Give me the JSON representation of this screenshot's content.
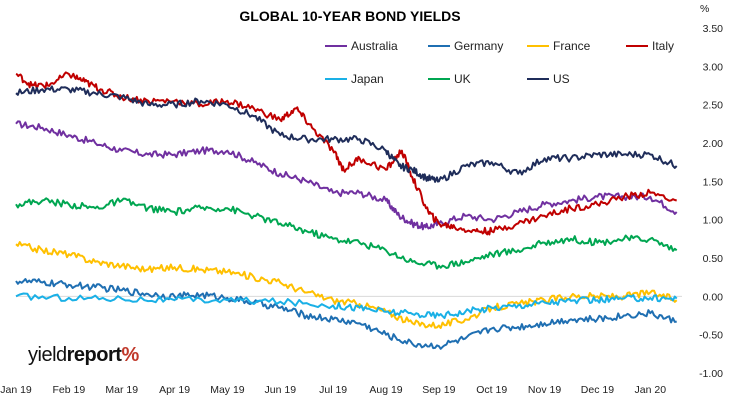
{
  "chart_data": {
    "type": "line",
    "title": "GLOBAL 10-YEAR BOND YIELDS",
    "ylabel": "%",
    "ylim": [
      -1.0,
      3.5
    ],
    "y_ticks": [
      3.5,
      3.0,
      2.5,
      2.0,
      1.5,
      1.0,
      0.5,
      0.0,
      -0.5,
      -1.0
    ],
    "y_tick_labels": [
      "3.50",
      "3.00",
      "2.50",
      "2.00",
      "1.50",
      "1.00",
      "0.50",
      "0.00",
      "-0.50",
      "-1.00"
    ],
    "x_tick_labels": [
      "Jan 19",
      "Feb 19",
      "Mar 19",
      "Apr 19",
      "May 19",
      "Jun 19",
      "Jul 19",
      "Aug 19",
      "Sep 19",
      "Oct 19",
      "Nov 19",
      "Dec 19",
      "Jan 20"
    ],
    "x_months": [
      0,
      1,
      2,
      3,
      4,
      5,
      6,
      7,
      8,
      9,
      10,
      11,
      12
    ],
    "x_range": [
      0,
      12.6
    ],
    "grid": false,
    "legend_position": "top-right",
    "series": [
      {
        "name": "Australia",
        "color": "#7030a0",
        "x": [
          0,
          0.5,
          1,
          1.5,
          2,
          2.5,
          3,
          3.5,
          4,
          4.5,
          5,
          5.5,
          6,
          6.5,
          7,
          7.25,
          7.5,
          7.75,
          8,
          8.5,
          9,
          9.5,
          10,
          10.5,
          11,
          11.5,
          12,
          12.5
        ],
        "values": [
          2.25,
          2.2,
          2.1,
          2.0,
          1.9,
          1.85,
          1.85,
          1.9,
          1.9,
          1.75,
          1.6,
          1.5,
          1.35,
          1.35,
          1.25,
          1.05,
          0.95,
          0.9,
          0.95,
          1.05,
          1.0,
          1.1,
          1.2,
          1.25,
          1.3,
          1.3,
          1.3,
          1.1
        ]
      },
      {
        "name": "Germany",
        "color": "#1f6fb2",
        "x": [
          0,
          0.5,
          1,
          1.5,
          2,
          2.5,
          3,
          3.5,
          4,
          4.5,
          5,
          5.5,
          6,
          6.5,
          7,
          7.5,
          8,
          8.5,
          9,
          9.5,
          10,
          10.5,
          11,
          11.5,
          12,
          12.5
        ],
        "values": [
          0.2,
          0.18,
          0.15,
          0.12,
          0.08,
          0.03,
          0.0,
          0.02,
          -0.02,
          -0.08,
          -0.15,
          -0.25,
          -0.3,
          -0.35,
          -0.5,
          -0.62,
          -0.65,
          -0.55,
          -0.42,
          -0.4,
          -0.35,
          -0.3,
          -0.3,
          -0.25,
          -0.22,
          -0.33
        ]
      },
      {
        "name": "France",
        "color": "#ffc000",
        "x": [
          0,
          0.5,
          1,
          1.5,
          2,
          2.5,
          3,
          3.5,
          4,
          4.5,
          5,
          5.5,
          6,
          6.5,
          7,
          7.5,
          8,
          8.5,
          9,
          9.5,
          10,
          10.5,
          11,
          11.5,
          12,
          12.5
        ],
        "values": [
          0.68,
          0.6,
          0.55,
          0.45,
          0.4,
          0.35,
          0.38,
          0.35,
          0.32,
          0.25,
          0.18,
          0.05,
          -0.05,
          -0.1,
          -0.2,
          -0.35,
          -0.38,
          -0.3,
          -0.15,
          -0.1,
          -0.05,
          0.0,
          0.0,
          0.0,
          0.05,
          -0.05
        ]
      },
      {
        "name": "Italy",
        "color": "#c00000",
        "x": [
          0,
          0.3,
          0.6,
          1,
          1.3,
          1.6,
          2,
          2.5,
          3,
          3.5,
          4,
          4.5,
          5,
          5.3,
          5.6,
          6,
          6.2,
          6.5,
          7,
          7.3,
          7.5,
          7.8,
          8,
          8.3,
          8.7,
          9,
          9.5,
          10,
          10.5,
          11,
          11.5,
          12,
          12.5
        ],
        "values": [
          2.9,
          2.75,
          2.75,
          2.9,
          2.8,
          2.7,
          2.6,
          2.55,
          2.55,
          2.5,
          2.55,
          2.45,
          2.3,
          2.45,
          2.2,
          1.9,
          1.65,
          1.8,
          1.65,
          1.9,
          1.55,
          1.1,
          0.95,
          0.9,
          0.85,
          0.85,
          0.95,
          1.05,
          1.15,
          1.2,
          1.3,
          1.35,
          1.25
        ]
      },
      {
        "name": "Japan",
        "color": "#1ab0e6",
        "x": [
          0,
          1,
          2,
          3,
          4,
          5,
          6,
          6.5,
          7,
          7.5,
          8,
          8.5,
          9,
          9.5,
          10,
          10.5,
          11,
          11.5,
          12,
          12.5
        ],
        "values": [
          0.0,
          -0.02,
          -0.03,
          -0.05,
          -0.05,
          -0.07,
          -0.12,
          -0.15,
          -0.2,
          -0.23,
          -0.25,
          -0.2,
          -0.15,
          -0.12,
          -0.08,
          -0.06,
          -0.05,
          -0.03,
          -0.02,
          -0.03
        ]
      },
      {
        "name": "UK",
        "color": "#00a651",
        "x": [
          0,
          0.5,
          1,
          1.5,
          2,
          2.5,
          3,
          3.5,
          4,
          4.5,
          5,
          5.5,
          6,
          6.5,
          7,
          7.5,
          8,
          8.5,
          9,
          9.5,
          10,
          10.5,
          11,
          11.5,
          12,
          12.5
        ],
        "values": [
          1.2,
          1.25,
          1.2,
          1.15,
          1.25,
          1.15,
          1.1,
          1.15,
          1.15,
          1.05,
          0.95,
          0.85,
          0.75,
          0.7,
          0.6,
          0.45,
          0.4,
          0.45,
          0.55,
          0.6,
          0.7,
          0.75,
          0.7,
          0.75,
          0.75,
          0.6
        ]
      },
      {
        "name": "US",
        "color": "#1f2d5a",
        "x": [
          0,
          0.5,
          1,
          1.5,
          2,
          2.5,
          3,
          3.5,
          4,
          4.5,
          5,
          5.5,
          6,
          6.5,
          7,
          7.25,
          7.5,
          7.75,
          8,
          8.5,
          9,
          9.5,
          10,
          10.5,
          11,
          11.5,
          12,
          12.5
        ],
        "values": [
          2.65,
          2.7,
          2.7,
          2.65,
          2.6,
          2.5,
          2.5,
          2.55,
          2.5,
          2.35,
          2.1,
          2.05,
          2.05,
          2.05,
          1.9,
          1.7,
          1.65,
          1.55,
          1.5,
          1.7,
          1.75,
          1.6,
          1.8,
          1.8,
          1.85,
          1.85,
          1.85,
          1.7
        ]
      }
    ]
  },
  "logo": {
    "text_regular": "yield",
    "text_bold": "report",
    "text_symbol": "%"
  }
}
